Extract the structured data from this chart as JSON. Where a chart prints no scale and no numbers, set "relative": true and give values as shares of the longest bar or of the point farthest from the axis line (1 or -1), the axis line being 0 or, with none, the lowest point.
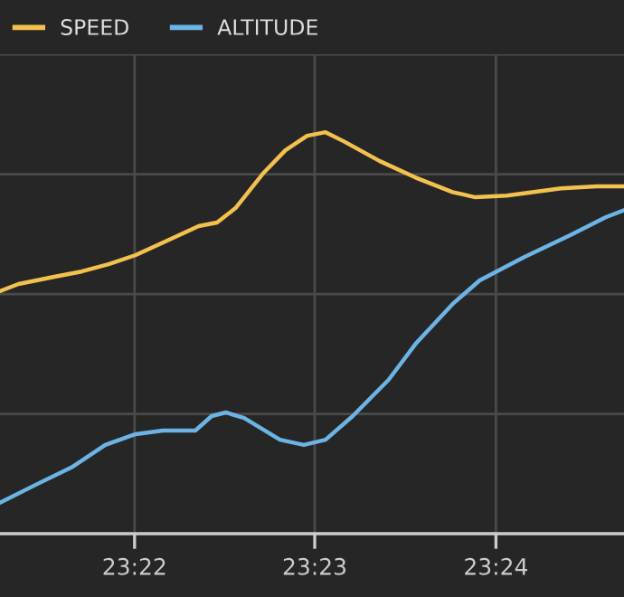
{
  "chart_data": {
    "type": "line",
    "relative": true,
    "grid": true,
    "legend": "top left",
    "line_style": "solid",
    "marker": "none",
    "xlim": [
      23.3543,
      23.4118
    ],
    "xticks": [
      {
        "value": 23.3667,
        "label": "23:22"
      },
      {
        "value": 23.3833,
        "label": "23:23"
      },
      {
        "value": 23.4,
        "label": "23:24"
      }
    ],
    "series": [
      {
        "name": "SPEED",
        "color": "#f2c14e",
        "x": [
          23.3543,
          23.356,
          23.3593,
          23.3618,
          23.3643,
          23.3668,
          23.3693,
          23.3726,
          23.3743,
          23.376,
          23.3785,
          23.3806,
          23.3826,
          23.3843,
          23.386,
          23.3893,
          23.3926,
          23.396,
          23.3981,
          23.401,
          23.406,
          23.4093,
          23.4118
        ],
        "values": [
          0.604,
          0.622,
          0.64,
          0.653,
          0.671,
          0.694,
          0.725,
          0.766,
          0.775,
          0.811,
          0.896,
          0.955,
          0.991,
          1,
          0.977,
          0.928,
          0.887,
          0.851,
          0.838,
          0.842,
          0.86,
          0.865,
          0.865
        ]
      },
      {
        "name": "ALTITUDE",
        "color": "#6cb4e4",
        "x": [
          23.3543,
          23.3576,
          23.361,
          23.364,
          23.3668,
          23.3693,
          23.3723,
          23.3738,
          23.3751,
          23.3768,
          23.3801,
          23.3823,
          23.3843,
          23.3868,
          23.3901,
          23.3926,
          23.396,
          23.3985,
          23.4026,
          23.4068,
          23.4101,
          23.4118
        ],
        "values": [
          0.077,
          0.122,
          0.167,
          0.221,
          0.248,
          0.257,
          0.257,
          0.293,
          0.302,
          0.288,
          0.234,
          0.221,
          0.234,
          0.293,
          0.383,
          0.473,
          0.572,
          0.631,
          0.689,
          0.743,
          0.788,
          0.806
        ]
      }
    ]
  }
}
